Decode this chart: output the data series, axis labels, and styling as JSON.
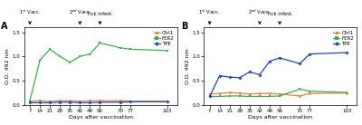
{
  "x_ticks": [
    7,
    14,
    21,
    28,
    35,
    42,
    49,
    56,
    70,
    77,
    103
  ],
  "panel_A": {
    "Ctrl1": [
      0.07,
      0.08,
      0.07,
      0.08,
      0.08,
      0.07,
      0.08,
      0.08,
      0.08,
      0.07,
      0.07
    ],
    "FER2": [
      0.08,
      0.92,
      1.15,
      1.0,
      0.88,
      1.0,
      1.05,
      1.28,
      1.18,
      1.15,
      1.12
    ],
    "TPE": [
      0.04,
      0.04,
      0.04,
      0.05,
      0.05,
      0.04,
      0.04,
      0.05,
      0.05,
      0.06,
      0.06
    ]
  },
  "panel_B": {
    "Ctrl1": [
      0.22,
      0.23,
      0.25,
      0.24,
      0.22,
      0.23,
      0.23,
      0.22,
      0.18,
      0.23,
      0.24
    ],
    "FER2": [
      0.17,
      0.17,
      0.18,
      0.18,
      0.17,
      0.17,
      0.17,
      0.18,
      0.32,
      0.28,
      0.25
    ],
    "TPE": [
      0.17,
      0.6,
      0.57,
      0.56,
      0.68,
      0.62,
      0.9,
      0.97,
      0.85,
      1.05,
      1.08
    ]
  },
  "colors": {
    "Ctrl1": "#e8833a",
    "FER2": "#3aad4e",
    "TPE": "#2244bb"
  },
  "markers": {
    "Ctrl1": "o",
    "FER2": "s",
    "TPE": "D"
  },
  "ylim": [
    0.0,
    1.6
  ],
  "yticks": [
    0.0,
    0.5,
    1.0,
    1.5
  ],
  "ylabel": "O.D. 492 nm",
  "xlabel": "Days after vaccination",
  "annot_1st": 7,
  "annot_2nd": 42,
  "annot_tick": 56,
  "label_A": "A",
  "label_B": "B",
  "bg_color": "#ffffff",
  "legend_order": [
    "Ctrl1",
    "FER2",
    "TPE"
  ]
}
